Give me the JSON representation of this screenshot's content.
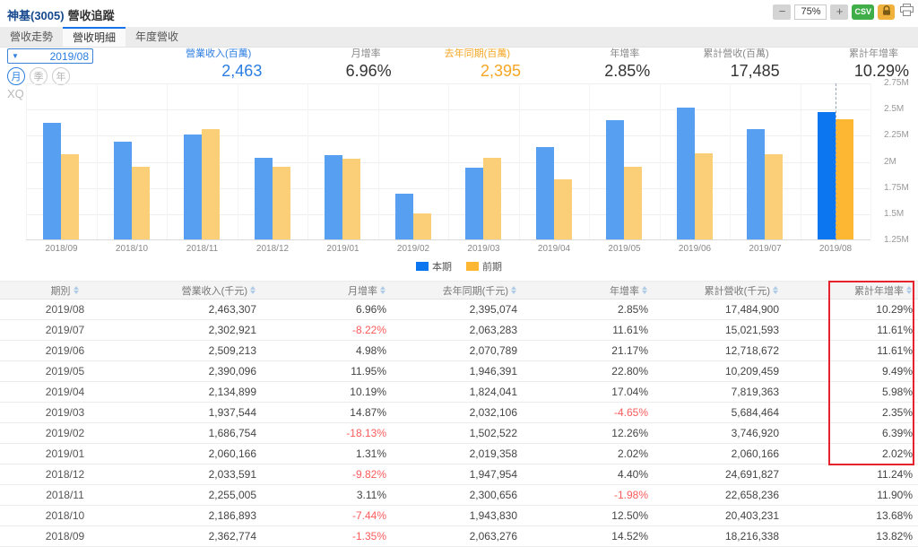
{
  "header": {
    "stock": "神基(3005)",
    "title": "營收追蹤",
    "controls": {
      "zoom_out": "−",
      "zoom_level": "75%",
      "zoom_in": "+",
      "csv": "CSV"
    }
  },
  "tabs": [
    {
      "label": "營收走勢",
      "active": false
    },
    {
      "label": "營收明細",
      "active": true
    },
    {
      "label": "年度營收",
      "active": false
    }
  ],
  "period": {
    "value": "2019/08",
    "modes": [
      {
        "label": "月",
        "active": true
      },
      {
        "label": "季",
        "active": false
      },
      {
        "label": "年",
        "active": false
      }
    ]
  },
  "stats": [
    {
      "label": "營業收入(百萬)",
      "value": "2,463",
      "color": "blue"
    },
    {
      "label": "月增率",
      "value": "6.96%",
      "color": "default"
    },
    {
      "label": "去年同期(百萬)",
      "value": "2,395",
      "color": "orange"
    },
    {
      "label": "年增率",
      "value": "2.85%",
      "color": "default"
    },
    {
      "label": "累計營收(百萬)",
      "value": "17,485",
      "color": "default"
    },
    {
      "label": "累計年增率",
      "value": "10.29%",
      "color": "default"
    }
  ],
  "chart_data": {
    "type": "bar",
    "watermark": "XQ",
    "categories": [
      "2018/09",
      "2018/10",
      "2018/11",
      "2018/12",
      "2019/01",
      "2019/02",
      "2019/03",
      "2019/04",
      "2019/05",
      "2019/06",
      "2019/07",
      "2019/08"
    ],
    "series": [
      {
        "name": "本期",
        "color": "#57A0F1",
        "highlight_color": "#0B76F0",
        "values": [
          2362774,
          2186893,
          2255005,
          2033591,
          2060166,
          1686754,
          1937544,
          2134899,
          2390096,
          2509213,
          2302921,
          2463307
        ]
      },
      {
        "name": "前期",
        "color": "#FBCE78",
        "highlight_color": "#FDB733",
        "values": [
          2063276,
          1943830,
          2300656,
          1947954,
          2019358,
          1502522,
          2032106,
          1824041,
          1946391,
          2070789,
          2063283,
          2395074
        ]
      }
    ],
    "highlight_index": 11,
    "ylim": [
      1250000,
      2750000
    ],
    "yticks": [
      {
        "value": 2750000,
        "label": "2.75M"
      },
      {
        "value": 2500000,
        "label": "2.5M"
      },
      {
        "value": 2250000,
        "label": "2.25M"
      },
      {
        "value": 2000000,
        "label": "2M"
      },
      {
        "value": 1750000,
        "label": "1.75M"
      },
      {
        "value": 1500000,
        "label": "1.5M"
      },
      {
        "value": 1250000,
        "label": "1.25M"
      }
    ],
    "legend_position": "bottom",
    "grid": true
  },
  "table": {
    "columns": [
      "期別",
      "營業收入(千元)",
      "月增率",
      "去年同期(千元)",
      "年增率",
      "累計營收(千元)",
      "累計年增率"
    ],
    "highlighted_column_index": 6,
    "rows": [
      [
        "2019/08",
        "2,463,307",
        "6.96%",
        "2,395,074",
        "2.85%",
        "17,484,900",
        "10.29%"
      ],
      [
        "2019/07",
        "2,302,921",
        "-8.22%",
        "2,063,283",
        "11.61%",
        "15,021,593",
        "11.61%"
      ],
      [
        "2019/06",
        "2,509,213",
        "4.98%",
        "2,070,789",
        "21.17%",
        "12,718,672",
        "11.61%"
      ],
      [
        "2019/05",
        "2,390,096",
        "11.95%",
        "1,946,391",
        "22.80%",
        "10,209,459",
        "9.49%"
      ],
      [
        "2019/04",
        "2,134,899",
        "10.19%",
        "1,824,041",
        "17.04%",
        "7,819,363",
        "5.98%"
      ],
      [
        "2019/03",
        "1,937,544",
        "14.87%",
        "2,032,106",
        "-4.65%",
        "5,684,464",
        "2.35%"
      ],
      [
        "2019/02",
        "1,686,754",
        "-18.13%",
        "1,502,522",
        "12.26%",
        "3,746,920",
        "6.39%"
      ],
      [
        "2019/01",
        "2,060,166",
        "1.31%",
        "2,019,358",
        "2.02%",
        "2,060,166",
        "2.02%"
      ],
      [
        "2018/12",
        "2,033,591",
        "-9.82%",
        "1,947,954",
        "4.40%",
        "24,691,827",
        "11.24%"
      ],
      [
        "2018/11",
        "2,255,005",
        "3.11%",
        "2,300,656",
        "-1.98%",
        "22,658,236",
        "11.90%"
      ],
      [
        "2018/10",
        "2,186,893",
        "-7.44%",
        "1,943,830",
        "12.50%",
        "20,403,231",
        "13.68%"
      ],
      [
        "2018/09",
        "2,362,774",
        "-1.35%",
        "2,063,276",
        "14.52%",
        "18,216,338",
        "13.82%"
      ]
    ]
  },
  "colors": {
    "accent_blue": "#2a7de1",
    "accent_orange": "#f5a623",
    "negative_red": "#fa5b5b",
    "highlight_box_red": "#e8222d",
    "csv_green": "#3fae49",
    "lock_yellow": "#f0b23c"
  }
}
